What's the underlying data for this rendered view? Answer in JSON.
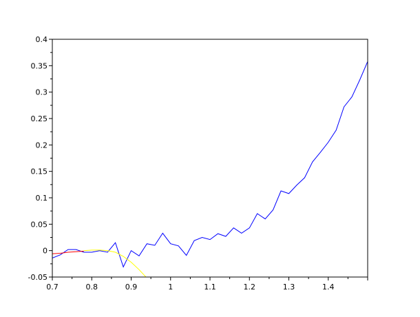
{
  "chart_data": {
    "type": "line",
    "title": "",
    "xlabel": "",
    "ylabel": "",
    "xlim": [
      0.7,
      1.5
    ],
    "ylim": [
      -0.05,
      0.4
    ],
    "grid": false,
    "x_ticks": [
      "0.7",
      "0.8",
      "0.9",
      "1",
      "1.1",
      "1.2",
      "1.3",
      "1.4"
    ],
    "x_tick_values": [
      0.7,
      0.8,
      0.9,
      1.0,
      1.1,
      1.2,
      1.3,
      1.4
    ],
    "y_ticks": [
      "-0.05",
      "0",
      "0.05",
      "0.1",
      "0.15",
      "0.2",
      "0.25",
      "0.3",
      "0.35",
      "0.4"
    ],
    "y_tick_values": [
      -0.05,
      0,
      0.05,
      0.1,
      0.15,
      0.2,
      0.25,
      0.3,
      0.35,
      0.4
    ],
    "series": [
      {
        "color": "#0000ff",
        "x": [
          0.7,
          0.72,
          0.74,
          0.76,
          0.78,
          0.8,
          0.82,
          0.84,
          0.86,
          0.88,
          0.9,
          0.92,
          0.94,
          0.96,
          0.98,
          1.0,
          1.02,
          1.04,
          1.06,
          1.08,
          1.1,
          1.12,
          1.14,
          1.16,
          1.18,
          1.2,
          1.22,
          1.24,
          1.26,
          1.28,
          1.3,
          1.32,
          1.34,
          1.36,
          1.38,
          1.4,
          1.42,
          1.44,
          1.46,
          1.48,
          1.5
        ],
        "y": [
          -0.014,
          -0.008,
          0.002,
          0.002,
          -0.003,
          -0.003,
          0.0,
          -0.003,
          0.015,
          -0.031,
          0.0,
          -0.01,
          0.013,
          0.01,
          0.033,
          0.013,
          0.009,
          -0.009,
          0.019,
          0.025,
          0.021,
          0.032,
          0.027,
          0.043,
          0.033,
          0.043,
          0.07,
          0.06,
          0.077,
          0.113,
          0.108,
          0.124,
          0.138,
          0.168,
          0.186,
          0.205,
          0.228,
          0.272,
          0.291,
          0.323,
          0.358
        ]
      },
      {
        "color": "#ff0000",
        "x": [
          0.7,
          0.72,
          0.74,
          0.76,
          0.78
        ],
        "y": [
          -0.006,
          -0.005,
          -0.003,
          -0.002,
          -0.001
        ]
      },
      {
        "color": "#ffff00",
        "x": [
          0.78,
          0.8,
          0.82,
          0.84,
          0.86,
          0.88,
          0.9,
          0.92,
          0.94
        ],
        "y": [
          0.0,
          0.001,
          0.001,
          0.0,
          -0.003,
          -0.011,
          -0.022,
          -0.036,
          -0.052
        ]
      }
    ]
  }
}
